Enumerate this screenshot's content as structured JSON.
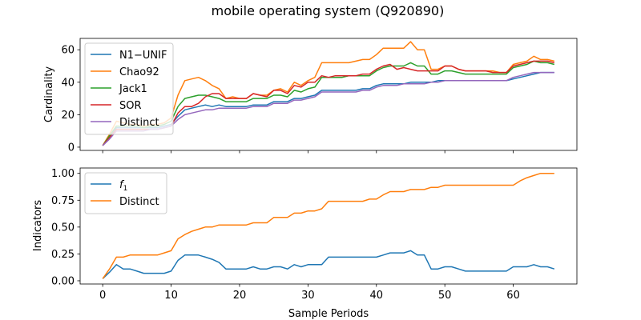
{
  "title": "mobile operating system (Q920890)",
  "chart_data": [
    {
      "type": "line",
      "ylabel": "Cardinality",
      "xlabel": "",
      "xlim": [
        -3.3,
        69.3
      ],
      "ylim": [
        -2,
        67
      ],
      "xticks": [
        0,
        10,
        20,
        30,
        40,
        50,
        60
      ],
      "xtick_labels_visible": false,
      "yticks": [
        0,
        20,
        40,
        60
      ],
      "legend_position": "top-left",
      "series": [
        {
          "name": "N1−UNIF",
          "color": "#1f77b4",
          "x": [
            0,
            1,
            2,
            3,
            4,
            5,
            6,
            7,
            8,
            9,
            10,
            11,
            12,
            13,
            14,
            15,
            16,
            17,
            18,
            19,
            20,
            21,
            22,
            23,
            24,
            25,
            26,
            27,
            28,
            29,
            30,
            31,
            32,
            33,
            34,
            35,
            36,
            37,
            38,
            39,
            40,
            41,
            42,
            43,
            44,
            45,
            46,
            47,
            48,
            49,
            50,
            51,
            52,
            53,
            54,
            55,
            56,
            57,
            58,
            59,
            60,
            61,
            62,
            63,
            64,
            65,
            66
          ],
          "y": [
            1,
            6,
            12,
            12,
            12,
            12,
            12,
            12,
            12,
            13,
            14,
            19,
            23,
            24,
            25,
            26,
            25,
            26,
            25,
            25,
            25,
            25,
            26,
            26,
            26,
            28,
            28,
            28,
            30,
            30,
            31,
            32,
            35,
            35,
            35,
            35,
            35,
            35,
            36,
            36,
            38,
            39,
            39,
            39,
            39,
            40,
            40,
            40,
            40,
            41,
            41,
            41,
            41,
            41,
            41,
            41,
            41,
            41,
            41,
            41,
            42,
            43,
            44,
            45,
            46,
            46,
            46
          ]
        },
        {
          "name": "Chao92",
          "color": "#ff7f0e",
          "x": [
            0,
            1,
            2,
            3,
            4,
            5,
            6,
            7,
            8,
            9,
            10,
            11,
            12,
            13,
            14,
            15,
            16,
            17,
            18,
            19,
            20,
            21,
            22,
            23,
            24,
            25,
            26,
            27,
            28,
            29,
            30,
            31,
            32,
            33,
            34,
            35,
            36,
            37,
            38,
            39,
            40,
            41,
            42,
            43,
            44,
            45,
            46,
            47,
            48,
            49,
            50,
            51,
            52,
            53,
            54,
            55,
            56,
            57,
            58,
            59,
            60,
            61,
            62,
            63,
            64,
            65,
            66
          ],
          "y": [
            1,
            8,
            16,
            15,
            14,
            14,
            13,
            14,
            14,
            15,
            18,
            32,
            41,
            42,
            43,
            41,
            38,
            36,
            30,
            31,
            30,
            30,
            33,
            32,
            32,
            35,
            36,
            34,
            40,
            38,
            41,
            43,
            52,
            52,
            52,
            52,
            52,
            53,
            54,
            54,
            57,
            61,
            61,
            61,
            61,
            65,
            60,
            60,
            48,
            48,
            50,
            50,
            48,
            47,
            47,
            47,
            47,
            47,
            46,
            46,
            51,
            52,
            53,
            56,
            54,
            54,
            53
          ]
        },
        {
          "name": "Jack1",
          "color": "#2ca02c",
          "x": [
            0,
            1,
            2,
            3,
            4,
            5,
            6,
            7,
            8,
            9,
            10,
            11,
            12,
            13,
            14,
            15,
            16,
            17,
            18,
            19,
            20,
            21,
            22,
            23,
            24,
            25,
            26,
            27,
            28,
            29,
            30,
            31,
            32,
            33,
            34,
            35,
            36,
            37,
            38,
            39,
            40,
            41,
            42,
            43,
            44,
            45,
            46,
            47,
            48,
            49,
            50,
            51,
            52,
            53,
            54,
            55,
            56,
            57,
            58,
            59,
            60,
            61,
            62,
            63,
            64,
            65,
            66
          ],
          "y": [
            1,
            7,
            13,
            13,
            13,
            13,
            12,
            13,
            13,
            14,
            16,
            25,
            30,
            31,
            32,
            32,
            31,
            30,
            28,
            28,
            28,
            28,
            30,
            30,
            30,
            32,
            32,
            31,
            35,
            34,
            36,
            37,
            43,
            43,
            43,
            43,
            44,
            44,
            44,
            44,
            47,
            49,
            50,
            50,
            50,
            52,
            50,
            50,
            45,
            45,
            47,
            47,
            46,
            45,
            45,
            45,
            45,
            45,
            45,
            45,
            49,
            50,
            51,
            53,
            52,
            52,
            51
          ]
        },
        {
          "name": "SOR",
          "color": "#d62728",
          "x": [
            0,
            1,
            2,
            3,
            4,
            5,
            6,
            7,
            8,
            9,
            10,
            11,
            12,
            13,
            14,
            15,
            16,
            17,
            18,
            19,
            20,
            21,
            22,
            23,
            24,
            25,
            26,
            27,
            28,
            29,
            30,
            31,
            32,
            33,
            34,
            35,
            36,
            37,
            38,
            39,
            40,
            41,
            42,
            43,
            44,
            45,
            46,
            47,
            48,
            49,
            50,
            51,
            52,
            53,
            54,
            55,
            56,
            57,
            58,
            59,
            60,
            61,
            62,
            63,
            64,
            65,
            66
          ],
          "y": [
            1,
            6,
            11,
            11,
            11,
            11,
            11,
            11,
            11,
            12,
            13,
            21,
            25,
            25,
            27,
            31,
            33,
            33,
            30,
            30,
            30,
            30,
            33,
            32,
            31,
            35,
            35,
            33,
            38,
            37,
            40,
            40,
            44,
            43,
            44,
            44,
            44,
            44,
            45,
            45,
            48,
            50,
            51,
            48,
            49,
            48,
            47,
            47,
            47,
            47,
            50,
            50,
            48,
            47,
            47,
            47,
            47,
            46,
            46,
            46,
            50,
            51,
            52,
            53,
            53,
            53,
            52
          ]
        },
        {
          "name": "Distinct",
          "color": "#9467bd",
          "x": [
            0,
            1,
            2,
            3,
            4,
            5,
            6,
            7,
            8,
            9,
            10,
            11,
            12,
            13,
            14,
            15,
            16,
            17,
            18,
            19,
            20,
            21,
            22,
            23,
            24,
            25,
            26,
            27,
            28,
            29,
            30,
            31,
            32,
            33,
            34,
            35,
            36,
            37,
            38,
            39,
            40,
            41,
            42,
            43,
            44,
            45,
            46,
            47,
            48,
            49,
            50,
            51,
            52,
            53,
            54,
            55,
            56,
            57,
            58,
            59,
            60,
            61,
            62,
            63,
            64,
            65,
            66
          ],
          "y": [
            1,
            5,
            10,
            10,
            10,
            10,
            10,
            11,
            11,
            12,
            13,
            17,
            20,
            21,
            22,
            23,
            23,
            24,
            24,
            24,
            24,
            24,
            25,
            25,
            25,
            27,
            27,
            27,
            29,
            29,
            30,
            31,
            34,
            34,
            34,
            34,
            34,
            34,
            35,
            35,
            37,
            38,
            38,
            38,
            39,
            39,
            39,
            39,
            40,
            40,
            41,
            41,
            41,
            41,
            41,
            41,
            41,
            41,
            41,
            41,
            43,
            44,
            45,
            46,
            46,
            46,
            46
          ]
        }
      ]
    },
    {
      "type": "line",
      "ylabel": "Indicators",
      "xlabel": "Sample Periods",
      "xlim": [
        -3.3,
        69.3
      ],
      "ylim": [
        -0.03,
        1.05
      ],
      "xticks": [
        0,
        10,
        20,
        30,
        40,
        50,
        60
      ],
      "yticks": [
        0.0,
        0.25,
        0.5,
        0.75,
        1.0
      ],
      "ytick_labels": [
        "0.00",
        "0.25",
        "0.50",
        "0.75",
        "1.00"
      ],
      "legend_position": "top-left",
      "series": [
        {
          "name": "f1",
          "name_main": "f",
          "name_sub": "1",
          "color": "#1f77b4",
          "x": [
            0,
            1,
            2,
            3,
            4,
            5,
            6,
            7,
            8,
            9,
            10,
            11,
            12,
            13,
            14,
            15,
            16,
            17,
            18,
            19,
            20,
            21,
            22,
            23,
            24,
            25,
            26,
            27,
            28,
            29,
            30,
            31,
            32,
            33,
            34,
            35,
            36,
            37,
            38,
            39,
            40,
            41,
            42,
            43,
            44,
            45,
            46,
            47,
            48,
            49,
            50,
            51,
            52,
            53,
            54,
            55,
            56,
            57,
            58,
            59,
            60,
            61,
            62,
            63,
            64,
            65,
            66
          ],
          "y": [
            0.02,
            0.08,
            0.15,
            0.11,
            0.11,
            0.09,
            0.07,
            0.07,
            0.07,
            0.07,
            0.09,
            0.19,
            0.24,
            0.24,
            0.24,
            0.22,
            0.2,
            0.17,
            0.11,
            0.11,
            0.11,
            0.11,
            0.13,
            0.11,
            0.11,
            0.13,
            0.13,
            0.11,
            0.15,
            0.13,
            0.15,
            0.15,
            0.15,
            0.22,
            0.22,
            0.22,
            0.22,
            0.22,
            0.22,
            0.22,
            0.22,
            0.24,
            0.26,
            0.26,
            0.26,
            0.28,
            0.24,
            0.24,
            0.11,
            0.11,
            0.13,
            0.13,
            0.11,
            0.09,
            0.09,
            0.09,
            0.09,
            0.09,
            0.09,
            0.09,
            0.13,
            0.13,
            0.13,
            0.15,
            0.13,
            0.13,
            0.11
          ]
        },
        {
          "name": "Distinct",
          "color": "#ff7f0e",
          "x": [
            0,
            1,
            2,
            3,
            4,
            5,
            6,
            7,
            8,
            9,
            10,
            11,
            12,
            13,
            14,
            15,
            16,
            17,
            18,
            19,
            20,
            21,
            22,
            23,
            24,
            25,
            26,
            27,
            28,
            29,
            30,
            31,
            32,
            33,
            34,
            35,
            36,
            37,
            38,
            39,
            40,
            41,
            42,
            43,
            44,
            45,
            46,
            47,
            48,
            49,
            50,
            51,
            52,
            53,
            54,
            55,
            56,
            57,
            58,
            59,
            60,
            61,
            62,
            63,
            64,
            65,
            66
          ],
          "y": [
            0.02,
            0.11,
            0.22,
            0.22,
            0.24,
            0.24,
            0.24,
            0.24,
            0.24,
            0.26,
            0.28,
            0.39,
            0.43,
            0.46,
            0.48,
            0.5,
            0.5,
            0.52,
            0.52,
            0.52,
            0.52,
            0.52,
            0.54,
            0.54,
            0.54,
            0.59,
            0.59,
            0.59,
            0.63,
            0.63,
            0.65,
            0.65,
            0.67,
            0.74,
            0.74,
            0.74,
            0.74,
            0.74,
            0.74,
            0.76,
            0.76,
            0.8,
            0.83,
            0.83,
            0.83,
            0.85,
            0.85,
            0.85,
            0.87,
            0.87,
            0.89,
            0.89,
            0.89,
            0.89,
            0.89,
            0.89,
            0.89,
            0.89,
            0.89,
            0.89,
            0.89,
            0.93,
            0.96,
            0.98,
            1.0,
            1.0,
            1.0
          ]
        }
      ]
    }
  ]
}
